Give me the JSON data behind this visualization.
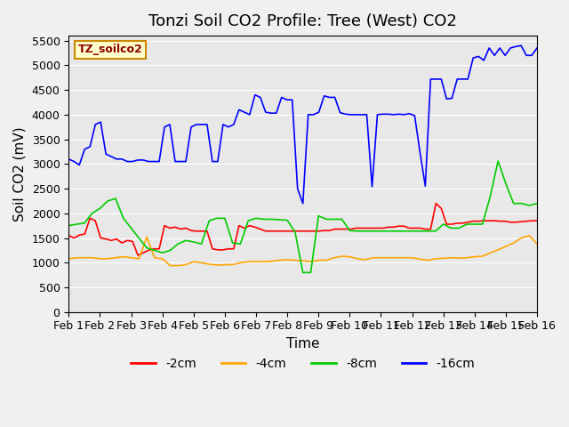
{
  "title": "Tonzi Soil CO2 Profile: Tree (West) CO2",
  "xlabel": "Time",
  "ylabel": "Soil CO2 (mV)",
  "watermark": "TZ_soilco2",
  "ylim": [
    0,
    5600
  ],
  "yticks": [
    0,
    500,
    1000,
    1500,
    2000,
    2500,
    3000,
    3500,
    4000,
    4500,
    5000,
    5500
  ],
  "x_labels": [
    "Feb 1",
    "Feb 2",
    "Feb 3",
    "Feb 4",
    "Feb 5",
    "Feb 6",
    "Feb 7",
    "Feb 8",
    "Feb 9",
    "Feb 10",
    "Feb 11",
    "Feb 12",
    "Feb 13",
    "Feb 14",
    "Feb 15",
    "Feb 16"
  ],
  "series": {
    "-2cm": {
      "color": "#FF0000",
      "values": [
        1550,
        1500,
        1560,
        1580,
        1900,
        1850,
        1500,
        1480,
        1450,
        1480,
        1400,
        1450,
        1430,
        1150,
        1200,
        1250,
        1280,
        1280,
        1750,
        1700,
        1720,
        1680,
        1700,
        1650,
        1640,
        1640,
        1640,
        1280,
        1260,
        1260,
        1280,
        1280,
        1750,
        1700,
        1750,
        1720,
        1680,
        1640,
        1640,
        1640,
        1640,
        1640,
        1640,
        1640,
        1640,
        1640,
        1640,
        1640,
        1650,
        1650,
        1680,
        1680,
        1680,
        1680,
        1700,
        1700,
        1700,
        1700,
        1700,
        1700,
        1720,
        1720,
        1740,
        1740,
        1700,
        1700,
        1700,
        1680,
        1680,
        2200,
        2100,
        1780,
        1780,
        1800,
        1800,
        1820,
        1840,
        1840,
        1850,
        1850,
        1850,
        1840,
        1840,
        1820,
        1820,
        1830,
        1840,
        1850,
        1850
      ]
    },
    "-4cm": {
      "color": "#FFA500",
      "values": [
        1080,
        1100,
        1100,
        1100,
        1080,
        1080,
        1100,
        1120,
        1100,
        1080,
        1520,
        1100,
        1080,
        940,
        940,
        960,
        1020,
        1000,
        970,
        950,
        960,
        960,
        1000,
        1020,
        1020,
        1020,
        1030,
        1050,
        1060,
        1050,
        1040,
        1020,
        1050,
        1050,
        1100,
        1130,
        1120,
        1080,
        1060,
        1100,
        1100,
        1100,
        1100,
        1100,
        1100,
        1070,
        1050,
        1080,
        1090,
        1100,
        1090,
        1100,
        1120,
        1130,
        1200,
        1260,
        1330,
        1400,
        1500,
        1550,
        1380
      ]
    },
    "-8cm": {
      "color": "#00CC00",
      "values": [
        1750,
        1780,
        1800,
        2000,
        2100,
        2250,
        2300,
        1900,
        1700,
        1500,
        1300,
        1250,
        1200,
        1250,
        1380,
        1450,
        1420,
        1380,
        1850,
        1900,
        1900,
        1400,
        1380,
        1850,
        1900,
        1880,
        1880,
        1870,
        1860,
        1620,
        800,
        800,
        1950,
        1880,
        1880,
        1880,
        1650,
        1640,
        1640,
        1640,
        1640,
        1640,
        1640,
        1640,
        1640,
        1640,
        1640,
        1640,
        1780,
        1700,
        1700,
        1780,
        1780,
        1780,
        2340,
        3060,
        2600,
        2200,
        2200,
        2160,
        2200
      ]
    },
    "-16cm": {
      "color": "#0000FF",
      "values": [
        3100,
        3050,
        2980,
        3300,
        3350,
        3800,
        3850,
        3200,
        3150,
        3100,
        3100,
        3050,
        3050,
        3080,
        3080,
        3050,
        3050,
        3050,
        3750,
        3800,
        3050,
        3050,
        3050,
        3750,
        3800,
        3800,
        3800,
        3050,
        3050,
        3800,
        3750,
        3800,
        4100,
        4050,
        4000,
        4400,
        4350,
        4050,
        4030,
        4030,
        4350,
        4300,
        4300,
        2500,
        2200,
        4000,
        4000,
        4050,
        4380,
        4350,
        4350,
        4040,
        4010,
        4000,
        4000,
        4000,
        4000,
        2540,
        4000,
        4010,
        4010,
        4000,
        4010,
        4000,
        4020,
        3980,
        3240,
        2550,
        4720,
        4720,
        4720,
        4320,
        4330,
        4720,
        4720,
        4720,
        5150,
        5180,
        5100,
        5350,
        5200,
        5350,
        5200,
        5350,
        5380,
        5400,
        5200,
        5200,
        5350
      ]
    }
  },
  "plot_bg": "#E8E8E8",
  "grid_color": "#FFFFFF",
  "title_fontsize": 13,
  "axis_fontsize": 11,
  "tick_fontsize": 9
}
